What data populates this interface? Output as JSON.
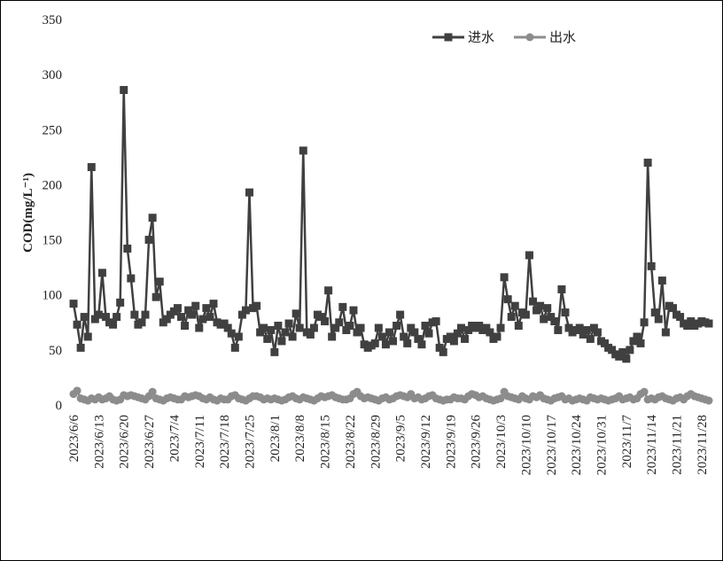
{
  "chart_data": {
    "type": "line",
    "y_label": "COD(mg/L⁻¹)",
    "categories": [
      "2023/6/6",
      null,
      null,
      null,
      null,
      null,
      null,
      "2023/6/13",
      null,
      null,
      null,
      null,
      null,
      null,
      "2023/6/20",
      null,
      null,
      null,
      null,
      null,
      null,
      "2023/6/27",
      null,
      null,
      null,
      null,
      null,
      null,
      "2023/7/4",
      null,
      null,
      null,
      null,
      null,
      null,
      "2023/7/11",
      null,
      null,
      null,
      null,
      null,
      null,
      "2023/7/18",
      null,
      null,
      null,
      null,
      null,
      null,
      "2023/7/25",
      null,
      null,
      null,
      null,
      null,
      null,
      "2023/8/1",
      null,
      null,
      null,
      null,
      null,
      null,
      "2023/8/8",
      null,
      null,
      null,
      null,
      null,
      null,
      "2023/8/15",
      null,
      null,
      null,
      null,
      null,
      null,
      "2023/8/22",
      null,
      null,
      null,
      null,
      null,
      null,
      "2023/8/29",
      null,
      null,
      null,
      null,
      null,
      null,
      "2023/9/5",
      null,
      null,
      null,
      null,
      null,
      null,
      "2023/9/12",
      null,
      null,
      null,
      null,
      null,
      null,
      "2023/9/19",
      null,
      null,
      null,
      null,
      null,
      null,
      "2023/9/26",
      null,
      null,
      null,
      null,
      null,
      null,
      "2023/10/3",
      null,
      null,
      null,
      null,
      null,
      null,
      "2023/10/10",
      null,
      null,
      null,
      null,
      null,
      null,
      "2023/10/17",
      null,
      null,
      null,
      null,
      null,
      null,
      "2023/10/24",
      null,
      null,
      null,
      null,
      null,
      null,
      "2023/10/31",
      null,
      null,
      null,
      null,
      null,
      null,
      "2023/11/7",
      null,
      null,
      null,
      null,
      null,
      null,
      "2023/11/14",
      null,
      null,
      null,
      null,
      null,
      null,
      "2023/11/21",
      null,
      null,
      null,
      null,
      null,
      null,
      "2023/11/28",
      null,
      null
    ],
    "series": [
      {
        "name": "进水",
        "color": "#404040",
        "marker": "square",
        "values": [
          92,
          73,
          52,
          80,
          62,
          216,
          78,
          82,
          120,
          80,
          75,
          73,
          80,
          93,
          286,
          142,
          115,
          82,
          73,
          75,
          82,
          150,
          170,
          98,
          112,
          75,
          78,
          82,
          85,
          88,
          80,
          72,
          86,
          82,
          90,
          70,
          78,
          88,
          80,
          92,
          75,
          73,
          74,
          70,
          65,
          52,
          62,
          82,
          86,
          193,
          88,
          90,
          66,
          70,
          60,
          68,
          48,
          72,
          58,
          66,
          74,
          62,
          83,
          70,
          231,
          66,
          64,
          70,
          82,
          80,
          76,
          104,
          62,
          70,
          75,
          89,
          68,
          72,
          86,
          66,
          70,
          55,
          52,
          54,
          56,
          70,
          62,
          55,
          66,
          58,
          72,
          82,
          62,
          56,
          70,
          66,
          60,
          55,
          72,
          65,
          75,
          76,
          52,
          48,
          60,
          62,
          58,
          65,
          70,
          60,
          68,
          72,
          70,
          72,
          68,
          70,
          66,
          60,
          62,
          70,
          116,
          96,
          80,
          90,
          72,
          84,
          82,
          136,
          94,
          86,
          90,
          78,
          88,
          80,
          76,
          68,
          105,
          84,
          70,
          66,
          68,
          70,
          64,
          68,
          60,
          70,
          66,
          58,
          56,
          52,
          50,
          46,
          44,
          48,
          42,
          50,
          58,
          62,
          56,
          75,
          220,
          126,
          84,
          78,
          113,
          66,
          90,
          88,
          82,
          80,
          74,
          72,
          76,
          72,
          74,
          76,
          75,
          74
        ]
      },
      {
        "name": "出水",
        "color": "#8c8c8c",
        "marker": "circle",
        "values": [
          10,
          13,
          6,
          5,
          4,
          6,
          5,
          7,
          5,
          6,
          8,
          5,
          4,
          5,
          9,
          8,
          9,
          8,
          7,
          6,
          5,
          8,
          12,
          6,
          5,
          4,
          6,
          7,
          6,
          5,
          5,
          8,
          7,
          8,
          9,
          8,
          6,
          5,
          7,
          5,
          4,
          6,
          5,
          5,
          8,
          9,
          6,
          5,
          4,
          6,
          8,
          8,
          7,
          5,
          6,
          5,
          6,
          5,
          4,
          5,
          7,
          8,
          6,
          5,
          7,
          6,
          5,
          4,
          6,
          8,
          7,
          8,
          9,
          7,
          6,
          5,
          5,
          6,
          10,
          12,
          8,
          6,
          7,
          6,
          5,
          4,
          6,
          7,
          5,
          6,
          8,
          9,
          8,
          7,
          10,
          6,
          7,
          5,
          6,
          8,
          9,
          6,
          5,
          4,
          5,
          5,
          7,
          6,
          6,
          5,
          8,
          10,
          9,
          7,
          8,
          6,
          5,
          4,
          5,
          6,
          12,
          8,
          7,
          6,
          5,
          8,
          6,
          5,
          8,
          7,
          9,
          6,
          5,
          4,
          6,
          7,
          8,
          5,
          6,
          4,
          5,
          6,
          5,
          4,
          7,
          6,
          5,
          6,
          5,
          4,
          5,
          6,
          8,
          5,
          6,
          7,
          5,
          6,
          10,
          12,
          5,
          6,
          5,
          7,
          8,
          6,
          5,
          4,
          6,
          7,
          5,
          8,
          10,
          8,
          7,
          6,
          5,
          4
        ]
      }
    ],
    "ylim": [
      0,
      350
    ],
    "yticks": [
      0,
      50,
      100,
      150,
      200,
      250,
      300,
      350
    ],
    "grid": false,
    "legend": "top-right"
  }
}
